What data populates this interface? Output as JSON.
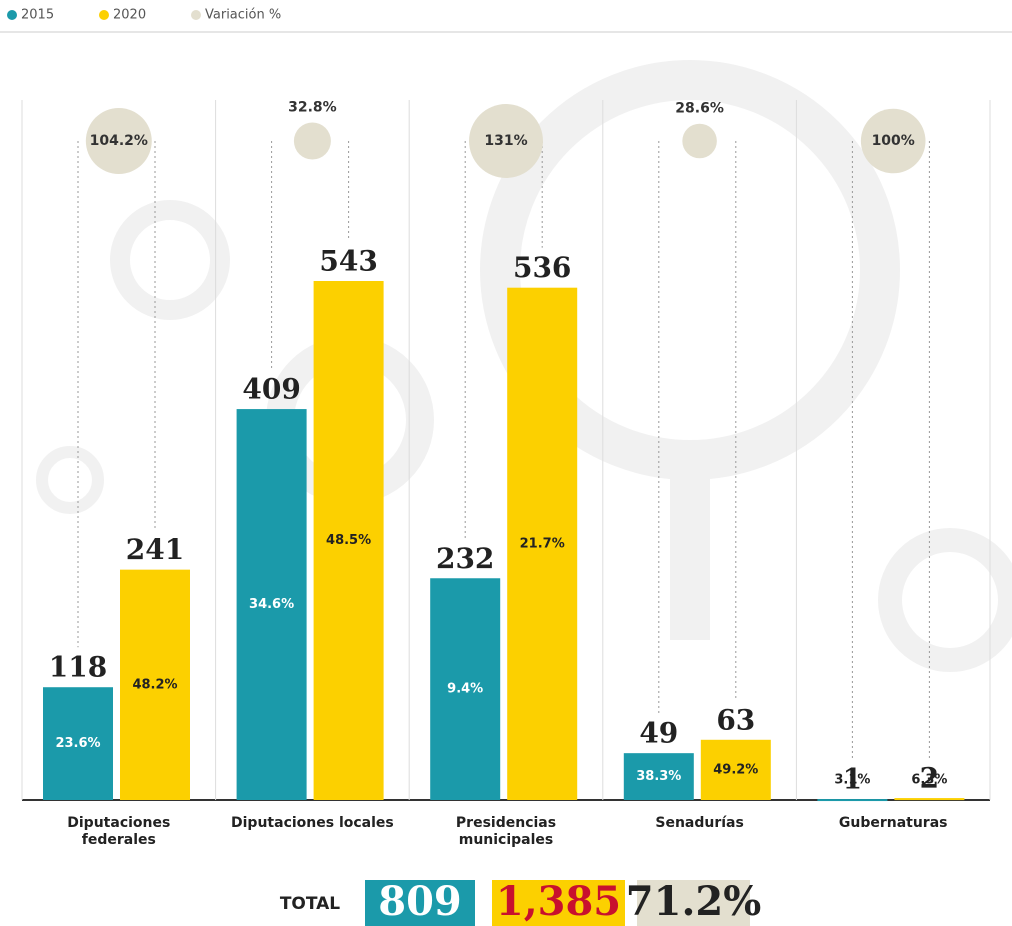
{
  "chart_data": {
    "type": "bar",
    "categories": [
      "Diputaciones federales",
      "Diputaciones locales",
      "Presidencias municipales",
      "Senadurías",
      "Gubernaturas"
    ],
    "series": [
      {
        "name": "2015",
        "color": "#1b9aaa",
        "values": [
          118,
          409,
          232,
          49,
          1
        ],
        "shares": [
          23.6,
          34.6,
          9.4,
          38.3,
          3.1
        ],
        "share_labels": [
          "23.6%",
          "34.6%",
          "9.4%",
          "38.3%",
          "3.1%"
        ]
      },
      {
        "name": "2020",
        "color": "#fcd000",
        "values": [
          241,
          543,
          536,
          63,
          2
        ],
        "shares": [
          48.2,
          48.5,
          21.7,
          49.2,
          6.3
        ],
        "share_labels": [
          "48.2%",
          "48.5%",
          "21.7%",
          "49.2%",
          "6.3%"
        ]
      }
    ],
    "variation": {
      "name": "Variación %",
      "color": "#e3dfcf",
      "values": [
        104.2,
        32.8,
        131,
        28.6,
        100
      ],
      "value_labels": [
        "104.2%",
        "32.8%",
        "131%",
        "28.6%",
        "100%"
      ]
    },
    "total": {
      "label": "TOTAL",
      "values": [
        809,
        1385,
        71.2
      ],
      "value_labels": [
        "809",
        "1,385",
        "71.2%"
      ]
    }
  }
}
